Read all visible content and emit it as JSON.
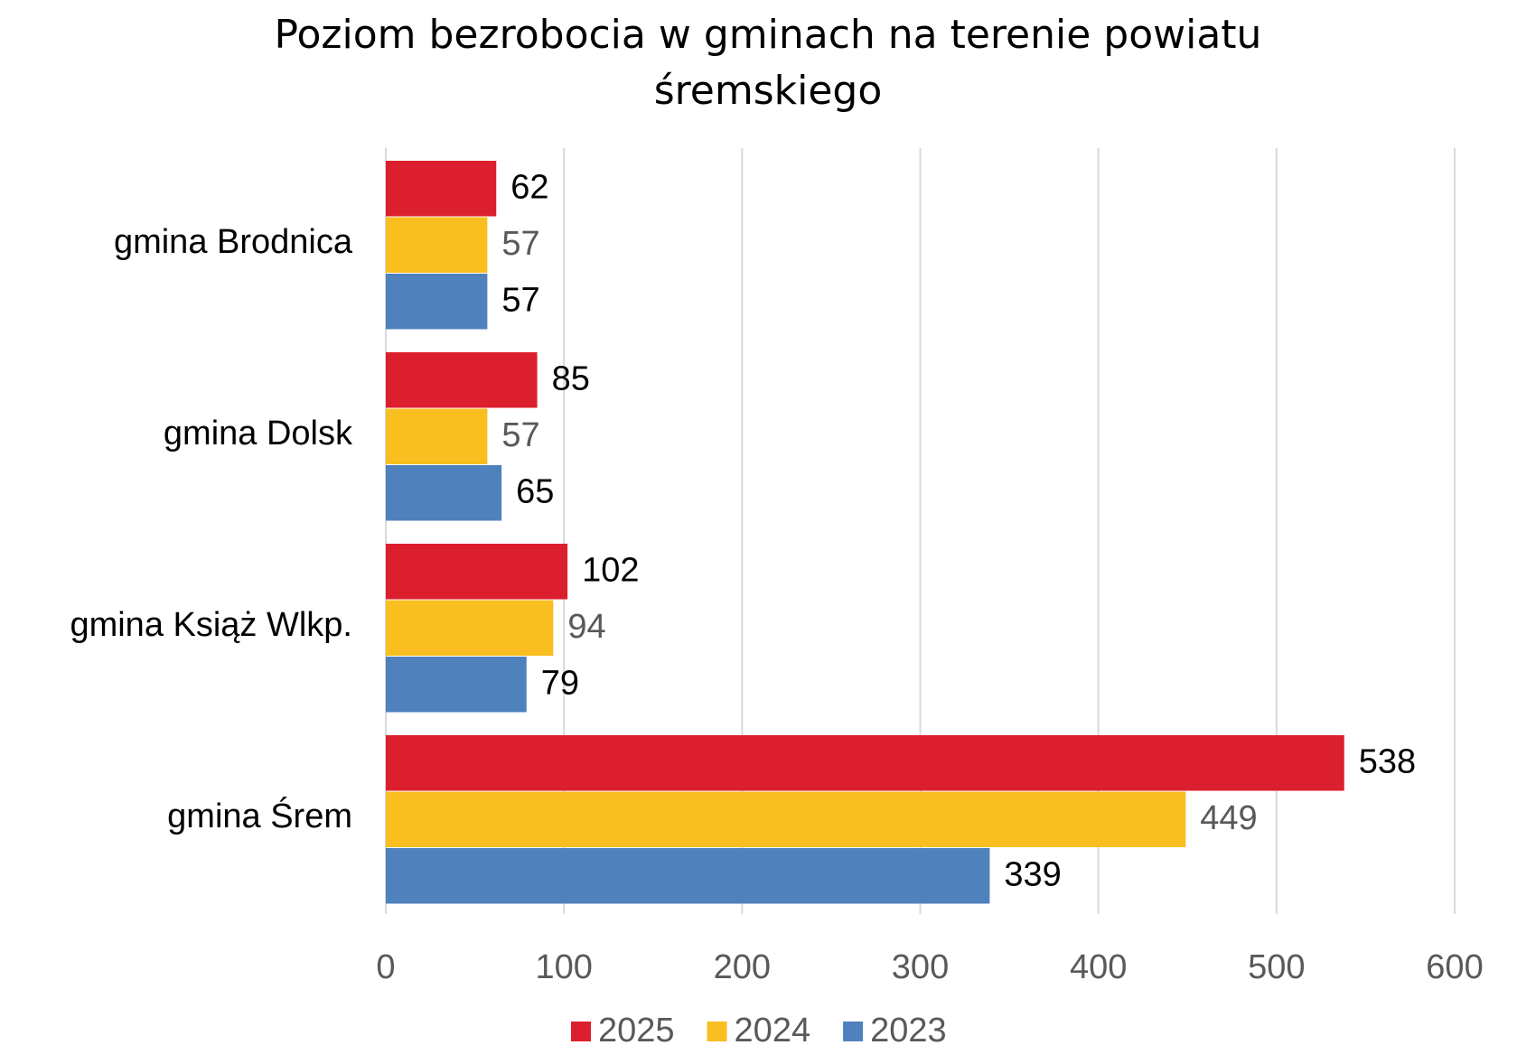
{
  "chart_data": {
    "type": "hbar",
    "title": "Poziom bezrobocia w gminach na terenie powiatu śremskiego",
    "categories": [
      "gmina Brodnica",
      "gmina Dolsk",
      "gmina Książ Wlkp.",
      "gmina Śrem"
    ],
    "series": [
      {
        "name": "2025",
        "color": "#dc1f2e",
        "values": [
          62,
          85,
          102,
          538
        ]
      },
      {
        "name": "2024",
        "color": "#f9be20",
        "values": [
          57,
          57,
          94,
          449
        ]
      },
      {
        "name": "2023",
        "color": "#4f81bd",
        "values": [
          57,
          65,
          79,
          339
        ]
      }
    ],
    "xlim": [
      0,
      600
    ],
    "xticks": [
      0,
      100,
      200,
      300,
      400,
      500,
      600
    ],
    "grid": true,
    "legend": "bottom"
  }
}
